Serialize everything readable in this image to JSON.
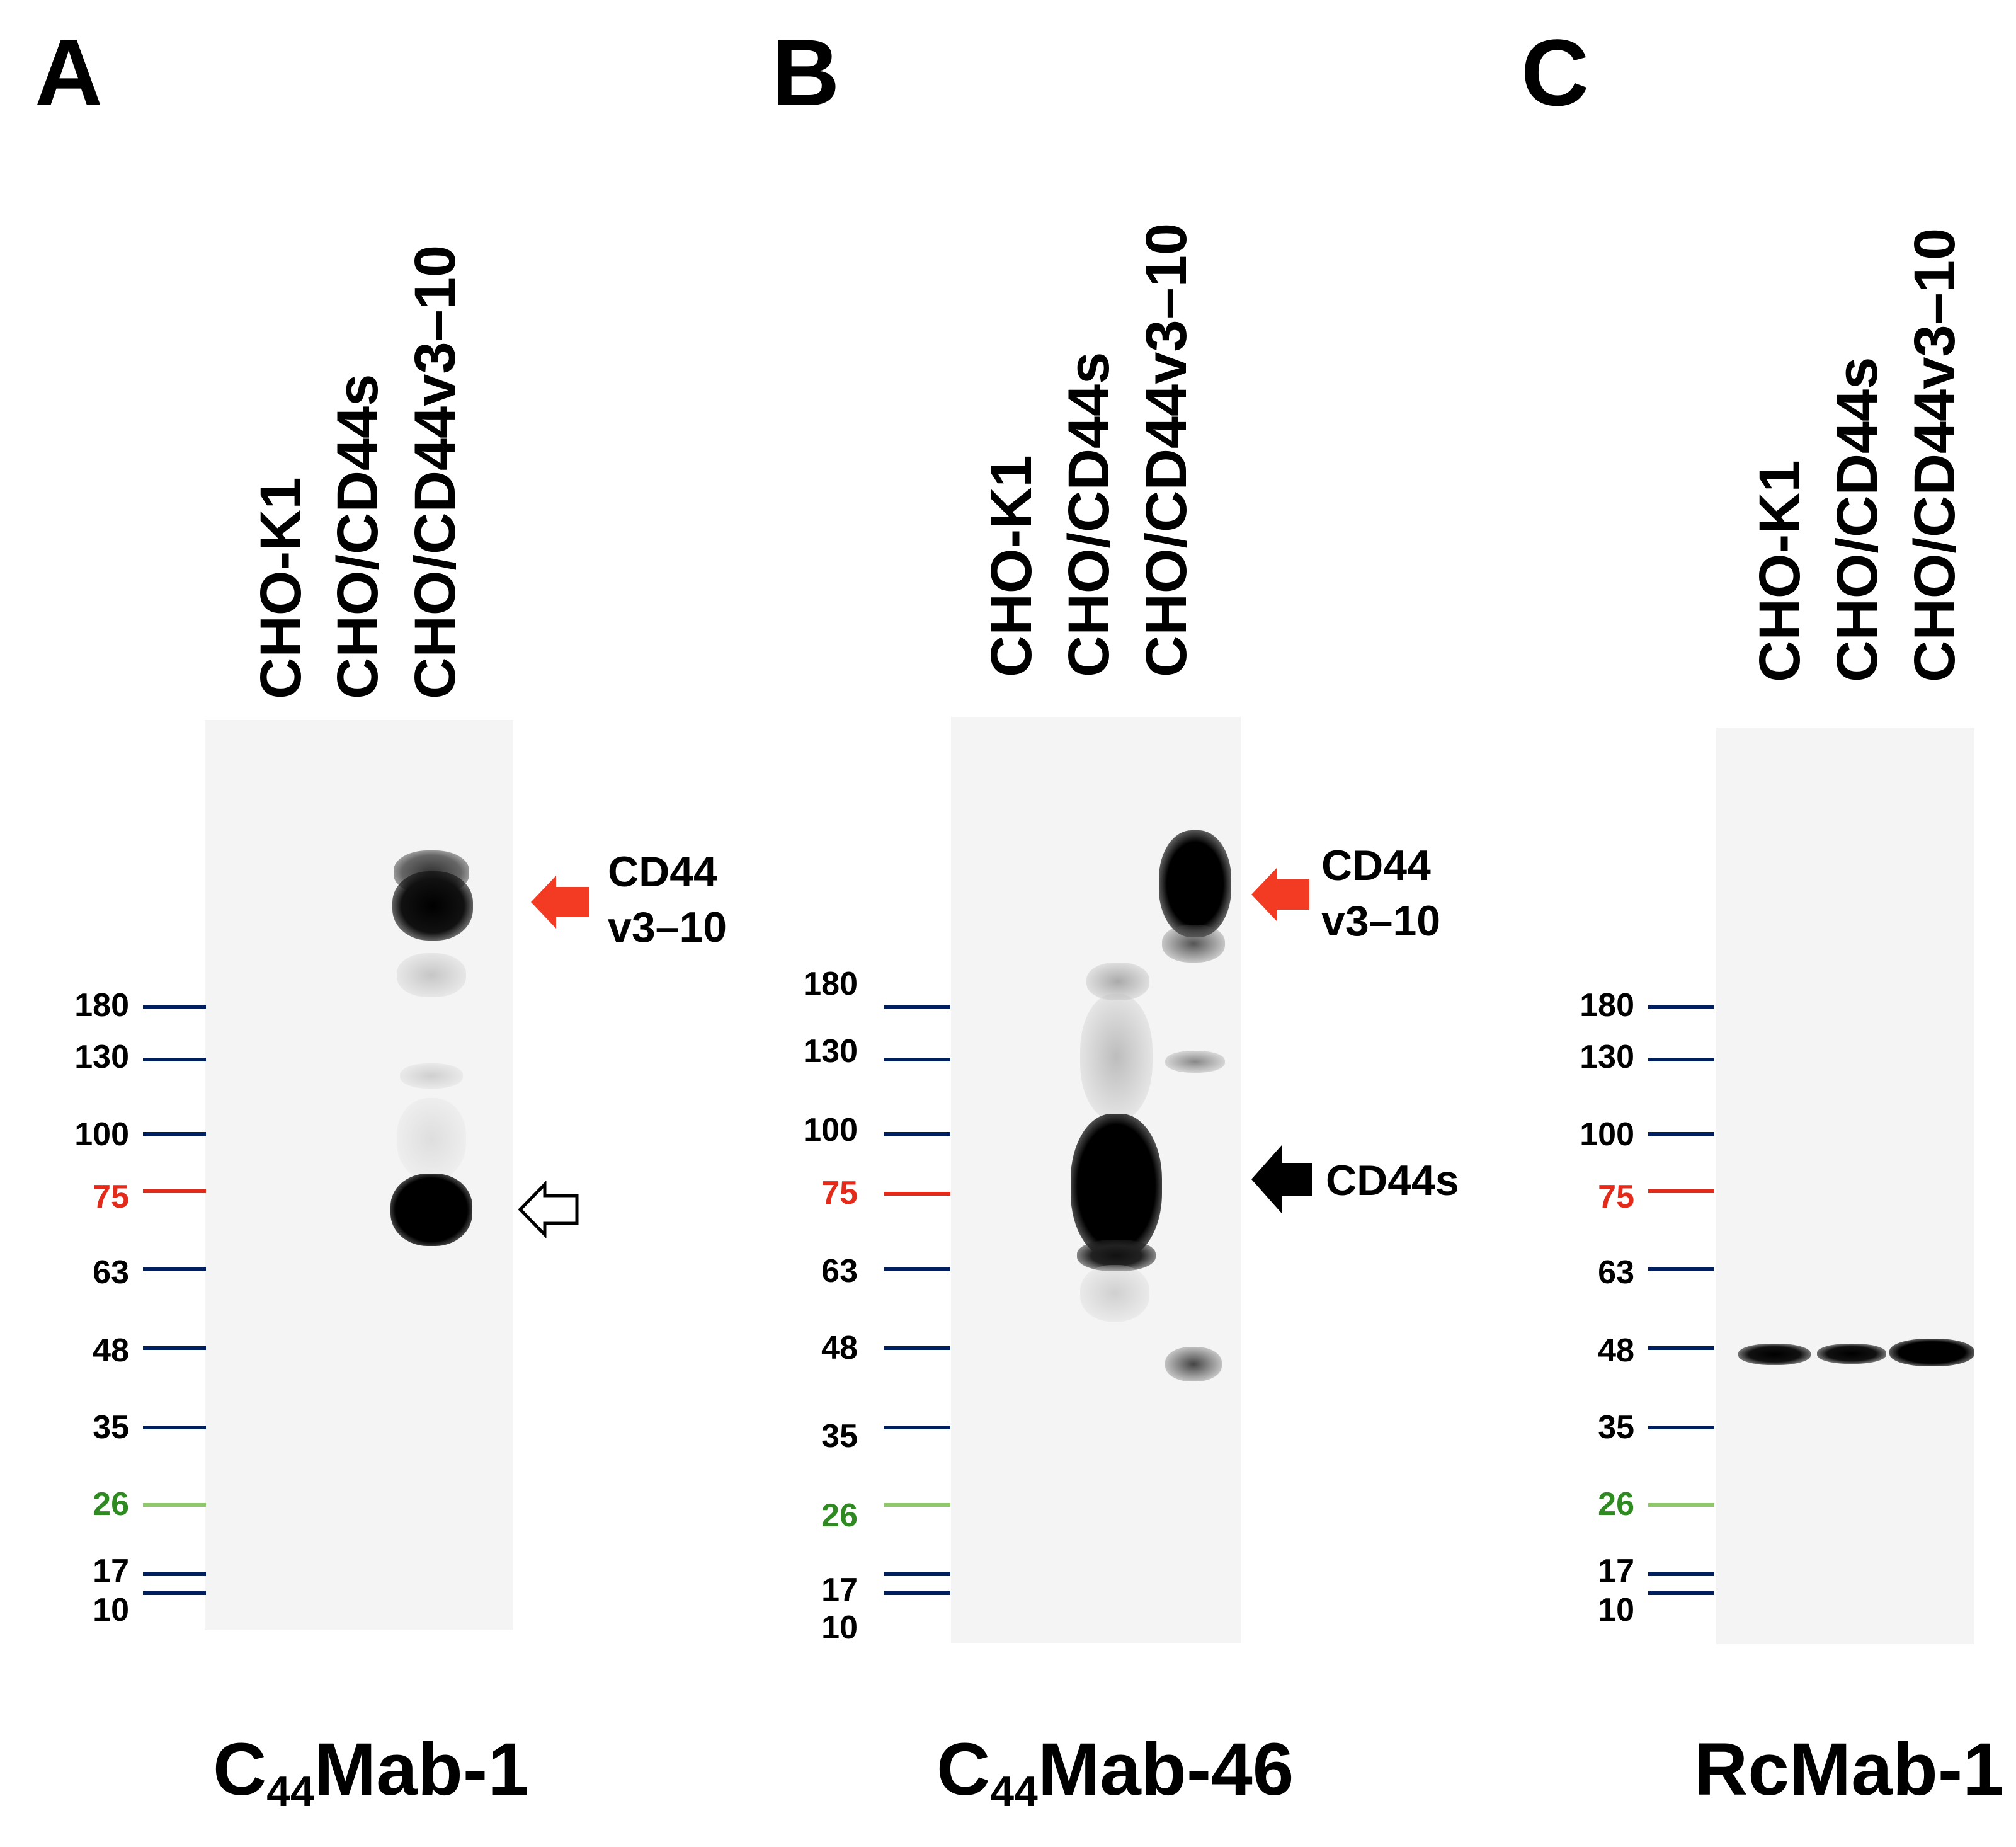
{
  "lanes": [
    "CHO-K1",
    "CHO/CD44s",
    "CHO/CD44v3–10"
  ],
  "markers": [
    {
      "kda": "180",
      "color": "#001f5f"
    },
    {
      "kda": "130",
      "color": "#001f5f"
    },
    {
      "kda": "100",
      "color": "#001f5f"
    },
    {
      "kda": "75",
      "color": "#e32b1c"
    },
    {
      "kda": "63",
      "color": "#001f5f"
    },
    {
      "kda": "48",
      "color": "#001f5f"
    },
    {
      "kda": "35",
      "color": "#001f5f"
    },
    {
      "kda": "26",
      "color": "#2f8a22",
      "line_color": "#8ec86a"
    },
    {
      "kda": "17",
      "color": "#001f5f"
    },
    {
      "kda": "10",
      "color": "#001f5f"
    }
  ],
  "panels": [
    {
      "letter": "A",
      "antibody_prefix": "C",
      "antibody_sub": "44",
      "antibody_suffix": "Mab-1",
      "band_labels": [
        {
          "line1": "CD44",
          "line2": "v3–10",
          "arrow": "red"
        }
      ],
      "open_arrow": true
    },
    {
      "letter": "B",
      "antibody_prefix": "C",
      "antibody_sub": "44",
      "antibody_suffix": "Mab-46",
      "band_labels": [
        {
          "line1": "CD44",
          "line2": "v3–10",
          "arrow": "red"
        },
        {
          "line1": "CD44s",
          "line2": "",
          "arrow": "black"
        }
      ]
    },
    {
      "letter": "C",
      "antibody_prefix": "",
      "antibody_sub": "",
      "antibody_suffix": "RcMab-1",
      "band_labels": []
    }
  ],
  "colors": {
    "arrow_red": "#f23b22",
    "arrow_black": "#000000",
    "marker_navy": "#001f5f"
  }
}
